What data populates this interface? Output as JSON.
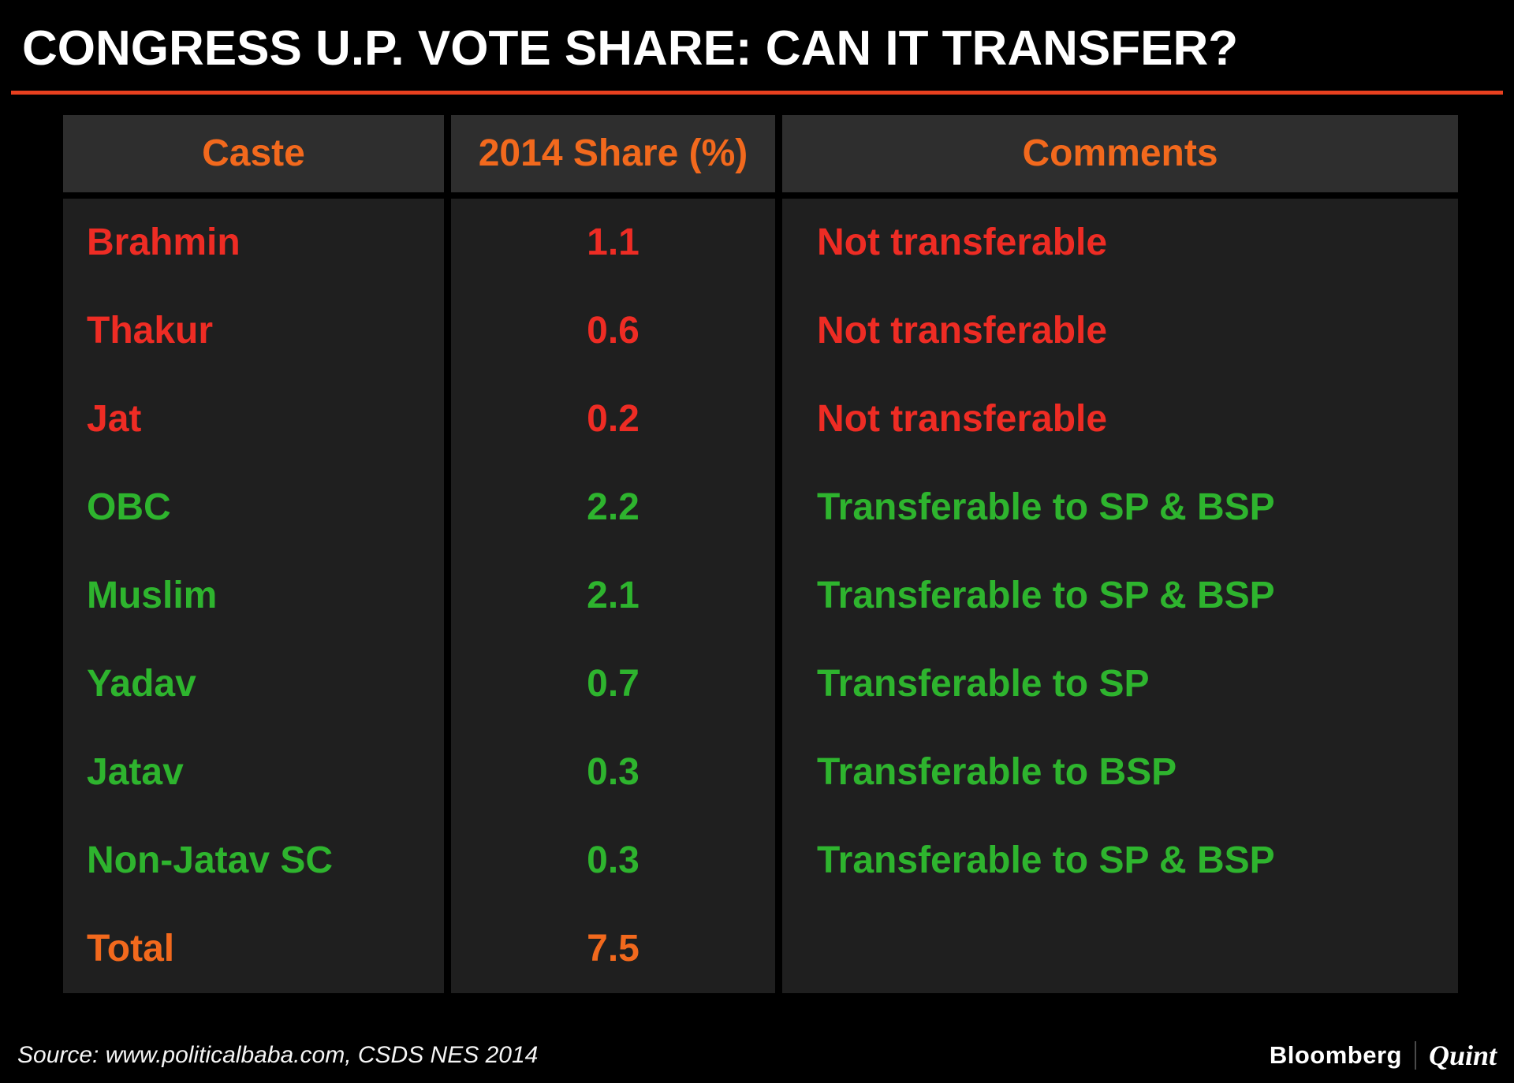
{
  "header": {
    "title": "CONGRESS U.P. VOTE SHARE: CAN IT TRANSFER?"
  },
  "colors": {
    "red": "#ee2c24",
    "green": "#2eb42e",
    "orange": "#f2691d",
    "accent_rule": "#e8401f",
    "header_bg": "#2e2e2e",
    "cell_bg": "#1f1f1f",
    "background": "#000000",
    "title_text": "#ffffff"
  },
  "chart_data": {
    "type": "table",
    "title": "CONGRESS U.P. VOTE SHARE: CAN IT TRANSFER?",
    "columns": [
      "Caste",
      "2014 Share (%)",
      "Comments"
    ],
    "rows": [
      {
        "caste": "Brahmin",
        "share": "1.1",
        "comment": "Not transferable",
        "color": "red"
      },
      {
        "caste": "Thakur",
        "share": "0.6",
        "comment": "Not transferable",
        "color": "red"
      },
      {
        "caste": "Jat",
        "share": "0.2",
        "comment": "Not transferable",
        "color": "red"
      },
      {
        "caste": "OBC",
        "share": "2.2",
        "comment": "Transferable to SP & BSP",
        "color": "green"
      },
      {
        "caste": "Muslim",
        "share": "2.1",
        "comment": "Transferable to SP & BSP",
        "color": "green"
      },
      {
        "caste": "Yadav",
        "share": "0.7",
        "comment": "Transferable to SP",
        "color": "green"
      },
      {
        "caste": "Jatav",
        "share": "0.3",
        "comment": "Transferable to BSP",
        "color": "green"
      },
      {
        "caste": "Non-Jatav SC",
        "share": "0.3",
        "comment": "Transferable to SP & BSP",
        "color": "green"
      },
      {
        "caste": "Total",
        "share": "7.5",
        "comment": "",
        "color": "orange"
      }
    ]
  },
  "footer": {
    "source": "Source: www.politicalbaba.com, CSDS NES 2014",
    "brand_primary": "Bloomberg",
    "brand_secondary": "Quint"
  }
}
